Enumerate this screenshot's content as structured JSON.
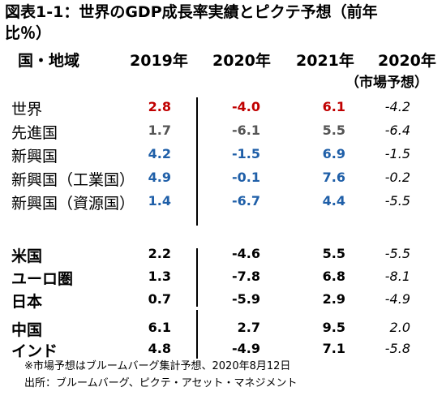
{
  "title": "図表1-1：世界のGDP成長率実績とピクテ予想（前年比％）",
  "header": {
    "region": "国・地域",
    "col2019": "2019年",
    "col2020": "2020年",
    "col2021": "2021年",
    "colMarket": "2020年",
    "colMarketSub": "（市場予想）"
  },
  "colors": {
    "red": "#c00000",
    "blue": "#1f5fa8",
    "gray": "#555555",
    "black": "#000000"
  },
  "chart_data": {
    "type": "table",
    "columns": [
      "国・地域",
      "2019年",
      "2020年",
      "2021年",
      "2020年（市場予想）"
    ],
    "rows": [
      {
        "name": "世界",
        "v2019": "2.8",
        "v2020": "-4.0",
        "v2021": "6.1",
        "market": "-4.2",
        "color": "red"
      },
      {
        "name": "先進国",
        "v2019": "1.7",
        "v2020": "-6.1",
        "v2021": "5.5",
        "market": "-6.4",
        "color": "gray"
      },
      {
        "name": "新興国",
        "v2019": "4.2",
        "v2020": "-1.5",
        "v2021": "6.9",
        "market": "-1.5",
        "color": "blue"
      },
      {
        "name": "新興国（工業国）",
        "v2019": "4.9",
        "v2020": "-0.1",
        "v2021": "7.6",
        "market": "-0.2",
        "color": "blue"
      },
      {
        "name": "新興国（資源国）",
        "v2019": "1.4",
        "v2020": "-6.7",
        "v2021": "4.4",
        "market": "-5.5",
        "color": "blue"
      },
      {
        "name": "米国",
        "v2019": "2.2",
        "v2020": "-4.6",
        "v2021": "5.5",
        "market": "-5.5",
        "color": "black"
      },
      {
        "name": "ユーロ圏",
        "v2019": "1.3",
        "v2020": "-7.8",
        "v2021": "6.8",
        "market": "-8.1",
        "color": "black"
      },
      {
        "name": "日本",
        "v2019": "0.7",
        "v2020": "-5.9",
        "v2021": "2.9",
        "market": "-4.9",
        "color": "black"
      },
      {
        "name": "中国",
        "v2019": "6.1",
        "v2020": "2.7",
        "v2021": "9.5",
        "market": "2.0",
        "color": "black"
      },
      {
        "name": "インド",
        "v2019": "4.8",
        "v2020": "-4.9",
        "v2021": "7.1",
        "market": "-5.8",
        "color": "black"
      }
    ]
  },
  "notes": {
    "note1": "※市場予想はブルームバーグ集計予想、2020年8月12日",
    "source": "出所：ブルームバーグ、ピクテ・アセット・マネジメント"
  }
}
